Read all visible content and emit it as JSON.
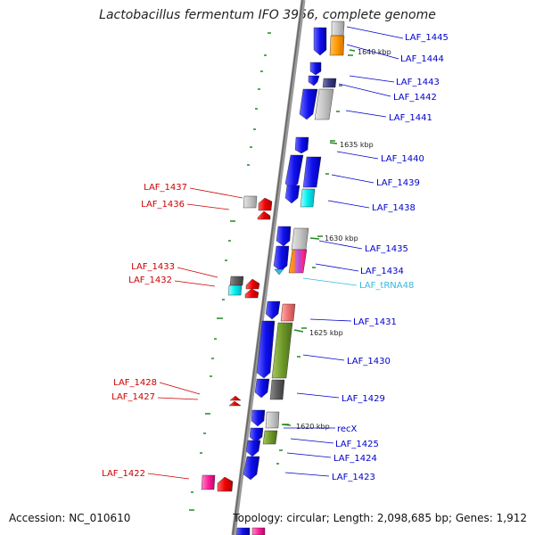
{
  "title": "Lactobacillus fermentum IFO 3956, complete genome",
  "footer": {
    "accession": "Accession: NC_010610",
    "summary": "Topology: circular; Length: 2,098,685 bp; Genes: 1,912"
  },
  "kbp_ticks": [
    "1640 kbp",
    "1635 kbp",
    "1630 kbp",
    "1625 kbp",
    "1620 kbp"
  ],
  "genes_right": [
    "LAF_1445",
    "LAF_1444",
    "LAF_1443",
    "LAF_1442",
    "LAF_1441",
    "LAF_1440",
    "LAF_1439",
    "LAF_1438",
    "LAF_1435",
    "LAF_1434",
    "LAF_tRNA48",
    "LAF_1431",
    "LAF_1430",
    "LAF_1429",
    "recX",
    "LAF_1425",
    "LAF_1424",
    "LAF_1423"
  ],
  "genes_left": [
    "LAF_1437",
    "LAF_1436",
    "LAF_1433",
    "LAF_1432",
    "LAF_1428",
    "LAF_1427",
    "LAF_1422"
  ],
  "colors": {
    "forward_label": "#0000cc",
    "reverse_label": "#cc0000",
    "trna_label": "#33bbdd",
    "axis": "#888888",
    "tick": "#228822"
  }
}
